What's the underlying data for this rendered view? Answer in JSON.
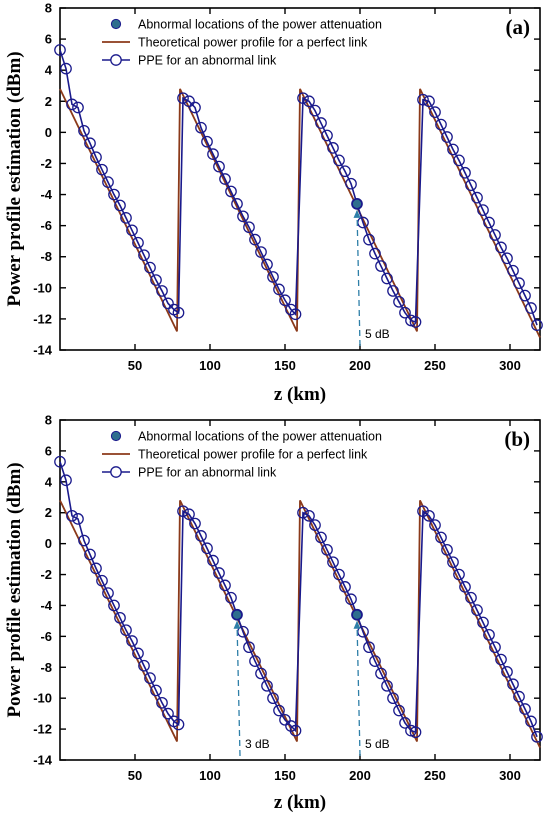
{
  "colors": {
    "theory": "#8B3A1A",
    "ppe": "#1A1A8C",
    "abnormal_marker": "#2E6E8E",
    "annotation": "#2E7FA8"
  },
  "chart_data": [
    {
      "type": "line",
      "panel_label": "(a)",
      "xlabel": "z (km)",
      "ylabel": "Power profile estimation (dBm)",
      "xlim": [
        0,
        320
      ],
      "ylim": [
        -14,
        8
      ],
      "xticks": [
        50,
        100,
        150,
        200,
        250,
        300
      ],
      "yticks": [
        -14,
        -12,
        -10,
        -8,
        -6,
        -4,
        -2,
        0,
        2,
        4,
        6,
        8
      ],
      "grid": false,
      "legend_position": "top-left",
      "legend": [
        {
          "label": "Abnormal locations of the power attenuation",
          "kind": "dot"
        },
        {
          "label": "Theoretical power profile for a perfect link",
          "kind": "line"
        },
        {
          "label": "PPE for an abnormal link",
          "kind": "circle-line"
        }
      ],
      "theory_series": {
        "name": "Theoretical power profile for a perfect link",
        "x": [
          0,
          78,
          80,
          158,
          160,
          198,
          198,
          238,
          240,
          320
        ],
        "y": [
          2.8,
          -12.8,
          2.8,
          -12.8,
          2.8,
          -4.8,
          -4.8,
          -12.8,
          2.8,
          -13.2
        ]
      },
      "ppe_series": {
        "name": "PPE for an abnormal link",
        "x": [
          0,
          4,
          8,
          12,
          16,
          20,
          24,
          28,
          32,
          36,
          40,
          44,
          48,
          52,
          56,
          60,
          64,
          68,
          72,
          76,
          79,
          82,
          86,
          90,
          94,
          98,
          102,
          106,
          110,
          114,
          118,
          122,
          126,
          130,
          134,
          138,
          142,
          146,
          150,
          154,
          157,
          162,
          166,
          170,
          174,
          178,
          182,
          186,
          190,
          194,
          198,
          202,
          206,
          210,
          214,
          218,
          222,
          226,
          230,
          234,
          237,
          242,
          246,
          250,
          254,
          258,
          262,
          266,
          270,
          274,
          278,
          282,
          286,
          290,
          294,
          298,
          302,
          306,
          310,
          314,
          318
        ],
        "y": [
          5.3,
          4.1,
          1.8,
          1.6,
          0.1,
          -0.7,
          -1.6,
          -2.4,
          -3.2,
          -4.0,
          -4.7,
          -5.5,
          -6.3,
          -7.1,
          -7.9,
          -8.7,
          -9.5,
          -10.2,
          -11.0,
          -11.4,
          -11.6,
          2.2,
          2.0,
          1.6,
          0.3,
          -0.6,
          -1.4,
          -2.2,
          -3.0,
          -3.8,
          -4.6,
          -5.4,
          -6.1,
          -6.9,
          -7.7,
          -8.5,
          -9.3,
          -10.1,
          -10.8,
          -11.4,
          -11.7,
          2.2,
          2.0,
          1.4,
          0.6,
          -0.2,
          -1.0,
          -1.8,
          -2.5,
          -3.3,
          -4.6,
          -5.8,
          -6.9,
          -7.8,
          -8.6,
          -9.4,
          -10.2,
          -10.9,
          -11.6,
          -12.1,
          -12.2,
          2.1,
          2.0,
          1.3,
          0.5,
          -0.3,
          -1.1,
          -1.8,
          -2.6,
          -3.4,
          -4.2,
          -5.0,
          -5.8,
          -6.6,
          -7.4,
          -8.1,
          -8.9,
          -9.7,
          -10.5,
          -11.3,
          -12.4
        ]
      },
      "abnormal_points": [
        {
          "x": 198,
          "y": -4.6,
          "annotation": "5 dB"
        }
      ]
    },
    {
      "type": "line",
      "panel_label": "(b)",
      "xlabel": "z (km)",
      "ylabel": "Power profile estimation (dBm)",
      "xlim": [
        0,
        320
      ],
      "ylim": [
        -14,
        8
      ],
      "xticks": [
        50,
        100,
        150,
        200,
        250,
        300
      ],
      "yticks": [
        -14,
        -12,
        -10,
        -8,
        -6,
        -4,
        -2,
        0,
        2,
        4,
        6,
        8
      ],
      "grid": false,
      "legend_position": "top-left",
      "legend": [
        {
          "label": "Abnormal locations of the power attenuation",
          "kind": "dot"
        },
        {
          "label": "Theoretical power profile for a perfect link",
          "kind": "line"
        },
        {
          "label": "PPE for an abnormal link",
          "kind": "circle-line"
        }
      ],
      "theory_series": {
        "name": "Theoretical power profile for a perfect link",
        "x": [
          0,
          78,
          80,
          118,
          118,
          158,
          160,
          198,
          198,
          238,
          240,
          320
        ],
        "y": [
          2.8,
          -12.8,
          2.8,
          -4.8,
          -4.8,
          -12.8,
          2.8,
          -4.8,
          -4.8,
          -12.8,
          2.8,
          -13.2
        ]
      },
      "ppe_series": {
        "name": "PPE for an abnormal link",
        "x": [
          0,
          4,
          8,
          12,
          16,
          20,
          24,
          28,
          32,
          36,
          40,
          44,
          48,
          52,
          56,
          60,
          64,
          68,
          72,
          76,
          79,
          82,
          86,
          90,
          94,
          98,
          102,
          106,
          110,
          114,
          118,
          122,
          126,
          130,
          134,
          138,
          142,
          146,
          150,
          154,
          157,
          162,
          166,
          170,
          174,
          178,
          182,
          186,
          190,
          194,
          198,
          202,
          206,
          210,
          214,
          218,
          222,
          226,
          230,
          234,
          237,
          242,
          246,
          250,
          254,
          258,
          262,
          266,
          270,
          274,
          278,
          282,
          286,
          290,
          294,
          298,
          302,
          306,
          310,
          314,
          318
        ],
        "y": [
          5.3,
          4.1,
          1.8,
          1.6,
          0.2,
          -0.7,
          -1.6,
          -2.4,
          -3.2,
          -4.0,
          -4.8,
          -5.6,
          -6.3,
          -7.1,
          -7.9,
          -8.7,
          -9.5,
          -10.3,
          -11.0,
          -11.5,
          -11.7,
          2.1,
          1.9,
          1.3,
          0.5,
          -0.3,
          -1.1,
          -1.9,
          -2.7,
          -3.5,
          -4.6,
          -5.7,
          -6.7,
          -7.6,
          -8.4,
          -9.2,
          -10.0,
          -10.8,
          -11.4,
          -11.8,
          -12.1,
          2.0,
          1.8,
          1.2,
          0.4,
          -0.4,
          -1.2,
          -2.0,
          -2.8,
          -3.6,
          -4.6,
          -5.7,
          -6.7,
          -7.6,
          -8.4,
          -9.2,
          -10.0,
          -10.8,
          -11.6,
          -12.1,
          -12.2,
          2.1,
          1.8,
          1.2,
          0.4,
          -0.4,
          -1.2,
          -2.0,
          -2.8,
          -3.5,
          -4.3,
          -5.1,
          -5.9,
          -6.7,
          -7.5,
          -8.3,
          -9.1,
          -9.9,
          -10.7,
          -11.5,
          -12.5
        ]
      },
      "abnormal_points": [
        {
          "x": 118,
          "y": -4.6,
          "annotation": "3 dB"
        },
        {
          "x": 198,
          "y": -4.6,
          "annotation": "5 dB"
        }
      ]
    }
  ]
}
